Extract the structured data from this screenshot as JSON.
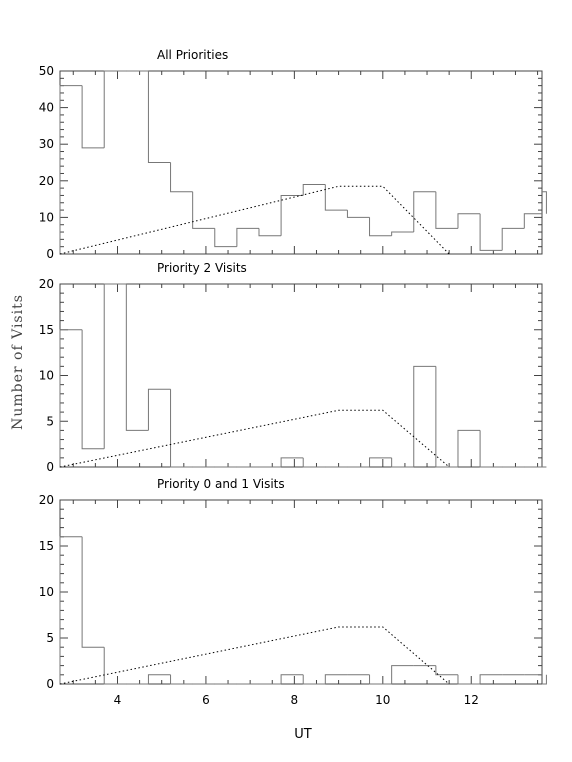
{
  "figure": {
    "ylabel": "Number of Visits",
    "xlabel": "UT"
  },
  "chart_data": [
    {
      "type": "bar",
      "title": "All Priorities",
      "xlim": [
        2.7,
        13.6
      ],
      "ylim": [
        0,
        50
      ],
      "yticks": [
        0,
        10,
        20,
        30,
        40,
        50
      ],
      "xticks": [
        4,
        6,
        8,
        10,
        12
      ],
      "bin_start": 2.7,
      "bin_width": 0.5,
      "values": [
        46,
        29,
        50,
        50,
        25,
        17,
        7,
        2,
        7,
        5,
        16,
        19,
        12,
        10,
        5,
        6,
        17,
        7,
        11,
        1,
        7,
        11,
        17
      ],
      "capacity_line": {
        "x": [
          2.7,
          9.0,
          10.0,
          11.5
        ],
        "y": [
          0,
          18.5,
          18.5,
          0
        ]
      }
    },
    {
      "type": "bar",
      "title": "Priority 2 Visits",
      "xlim": [
        2.7,
        13.6
      ],
      "ylim": [
        0,
        20
      ],
      "yticks": [
        0,
        5,
        10,
        15,
        20
      ],
      "xticks": [
        4,
        6,
        8,
        10,
        12
      ],
      "bin_start": 2.7,
      "bin_width": 0.5,
      "values": [
        15,
        2,
        20,
        4,
        8.5,
        0,
        0,
        0,
        0,
        0,
        1,
        0,
        0,
        0,
        1,
        0,
        11,
        0,
        4,
        0,
        0,
        0,
        0
      ],
      "capacity_line": {
        "x": [
          2.7,
          9.0,
          10.0,
          11.5
        ],
        "y": [
          0,
          6.2,
          6.2,
          0
        ]
      }
    },
    {
      "type": "bar",
      "title": "Priority 0 and 1 Visits",
      "xlim": [
        2.7,
        13.6
      ],
      "ylim": [
        0,
        20
      ],
      "yticks": [
        0,
        5,
        10,
        15,
        20
      ],
      "xticks": [
        4,
        6,
        8,
        10,
        12
      ],
      "bin_start": 2.7,
      "bin_width": 0.5,
      "values": [
        16,
        4,
        0,
        0,
        1,
        0,
        0,
        0,
        0,
        0,
        1,
        0,
        1,
        1,
        0,
        2,
        2,
        1,
        0,
        1,
        1,
        1,
        0
      ],
      "capacity_line": {
        "x": [
          2.7,
          9.0,
          10.0,
          11.5
        ],
        "y": [
          0,
          6.2,
          6.2,
          0
        ]
      }
    }
  ]
}
